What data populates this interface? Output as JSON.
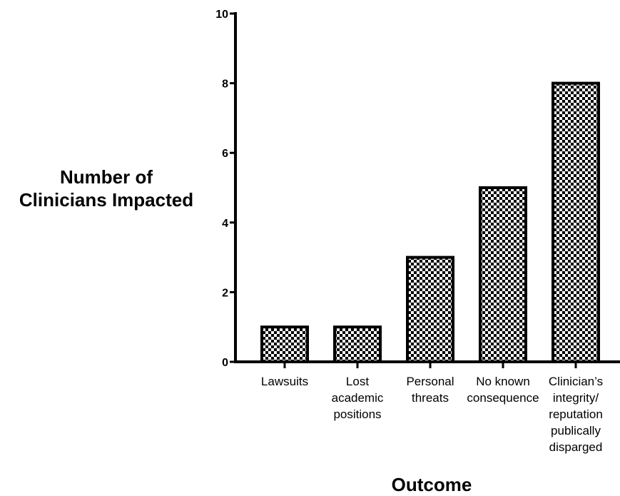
{
  "chart_data": {
    "type": "bar",
    "categories": [
      [
        "Lawsuits"
      ],
      [
        "Lost",
        "academic",
        "positions"
      ],
      [
        "Personal",
        "threats"
      ],
      [
        "No known",
        "consequence"
      ],
      [
        "Clinician’s",
        "integrity/",
        "reputation",
        "publically",
        "disparged"
      ]
    ],
    "values": [
      1,
      1,
      3,
      5,
      8
    ],
    "ylabel_lines": [
      "Number of",
      "Clinicians Impacted"
    ],
    "xlabel": "Outcome",
    "ylim": [
      0,
      10
    ],
    "yticks": [
      0,
      2,
      4,
      6,
      8,
      10
    ],
    "grid": false,
    "bar_fill": "checkerboard",
    "colors": {
      "bar_dark": "#000000",
      "bar_light": "#ffffff",
      "axis": "#000000"
    }
  }
}
